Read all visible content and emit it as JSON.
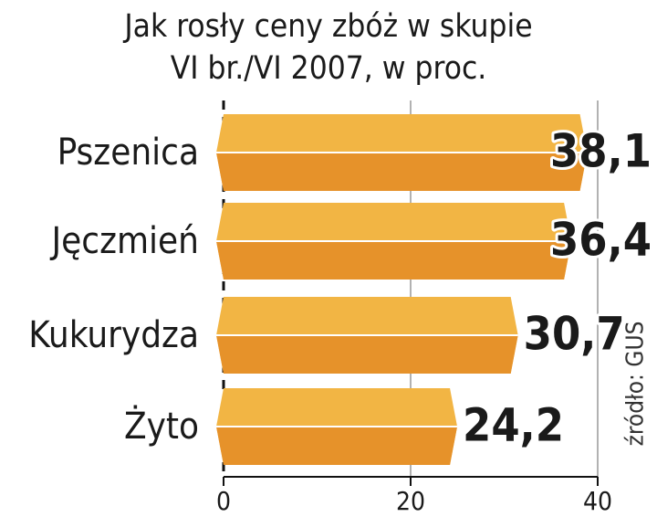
{
  "chart_data": {
    "type": "bar",
    "orientation": "horizontal",
    "title": "Jak rosły ceny zbóż w skupie",
    "subtitle": "VI br./VI 2007, w proc.",
    "source": "źródło: GUS",
    "categories": [
      "Pszenica",
      "Jęczmień",
      "Kukurydza",
      "Żyto"
    ],
    "values": [
      38.1,
      36.4,
      30.7,
      24.2
    ],
    "value_labels": [
      "38,1",
      "36,4",
      "30,7",
      "24,2"
    ],
    "color": "#f2b544",
    "xlim": [
      0,
      40
    ],
    "xticks": [
      0,
      20,
      40
    ],
    "grid": true
  }
}
